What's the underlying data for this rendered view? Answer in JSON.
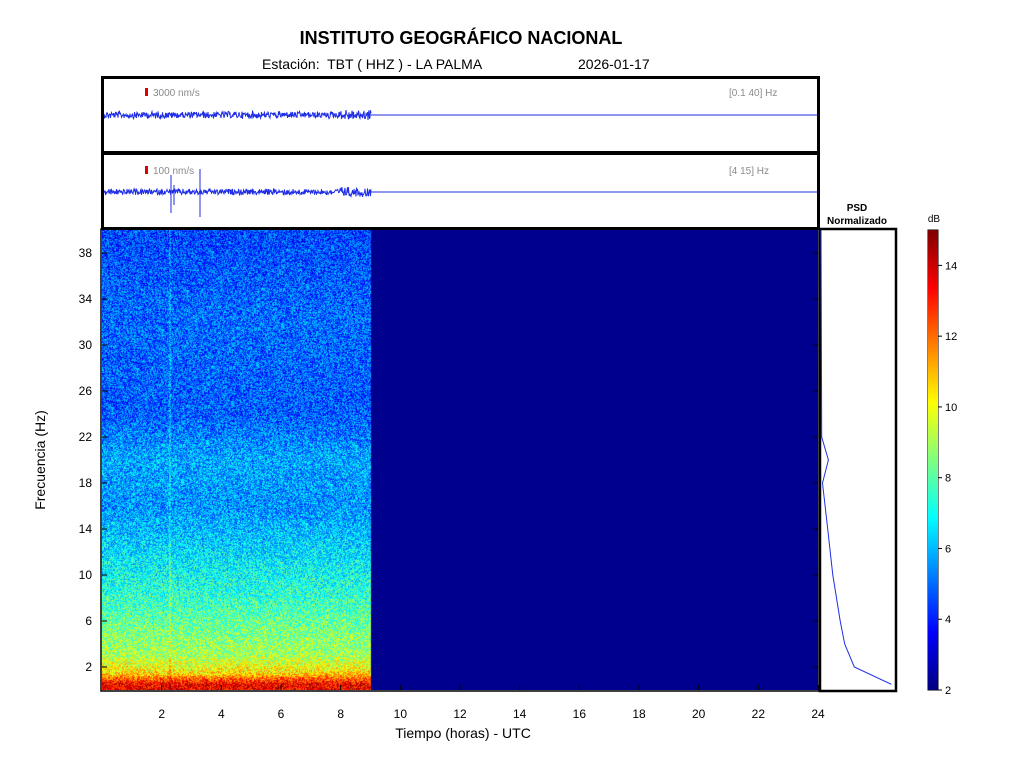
{
  "header": {
    "title": "INSTITUTO GEOGRÁFICO NACIONAL",
    "station_label": "Estación:",
    "station": "TBT ( HHZ ) - LA PALMA",
    "date": "2026-01-17"
  },
  "trace_panels": [
    {
      "scale": "3000 nm/s",
      "filter": "[0.1 40] Hz"
    },
    {
      "scale": "100 nm/s",
      "filter": "[4 15] Hz"
    }
  ],
  "psd_panel": {
    "title_line1": "PSD",
    "title_line2": "Normalizado"
  },
  "colorbar": {
    "unit": "dB",
    "range": [
      2,
      15
    ],
    "ticks": [
      "2",
      "4",
      "6",
      "8",
      "10",
      "12",
      "14"
    ],
    "colormap": "jet"
  },
  "colors": {
    "trace": "#1f2ee6",
    "spectrogram_empty": "#00008f",
    "scale_marker": "#e00000"
  },
  "chart_data": {
    "type": "heatmap",
    "title": "INSTITUTO GEOGRÁFICO NACIONAL",
    "xlabel": "Tiempo (horas) - UTC",
    "ylabel": "Frecuencia  (Hz)",
    "xlim": [
      0,
      24
    ],
    "ylim": [
      0,
      40
    ],
    "xticks": [
      "2",
      "4",
      "6",
      "8",
      "10",
      "12",
      "14",
      "16",
      "18",
      "20",
      "22",
      "24"
    ],
    "yticks": [
      "2",
      "6",
      "10",
      "14",
      "18",
      "22",
      "26",
      "30",
      "34",
      "38"
    ],
    "data_end_hour": 9,
    "power_db_by_frequency": [
      {
        "hz": 0.5,
        "db": 13.5
      },
      {
        "hz": 1.5,
        "db": 10.5
      },
      {
        "hz": 3,
        "db": 9
      },
      {
        "hz": 5,
        "db": 8.5
      },
      {
        "hz": 8,
        "db": 7.5
      },
      {
        "hz": 12,
        "db": 6.5
      },
      {
        "hz": 16,
        "db": 5.5
      },
      {
        "hz": 20,
        "db": 5.8
      },
      {
        "hz": 24,
        "db": 4.8
      },
      {
        "hz": 32.5,
        "db": 5
      },
      {
        "hz": 40,
        "db": 4.5
      }
    ],
    "psd_normalizado": [
      {
        "hz": 0.5,
        "value": 0.95
      },
      {
        "hz": 2,
        "value": 0.45
      },
      {
        "hz": 4,
        "value": 0.32
      },
      {
        "hz": 6,
        "value": 0.26
      },
      {
        "hz": 10,
        "value": 0.16
      },
      {
        "hz": 14,
        "value": 0.09
      },
      {
        "hz": 18,
        "value": 0.02
      },
      {
        "hz": 20,
        "value": 0.1
      },
      {
        "hz": 22,
        "value": 0.01
      },
      {
        "hz": 40,
        "value": 0.0
      }
    ]
  }
}
